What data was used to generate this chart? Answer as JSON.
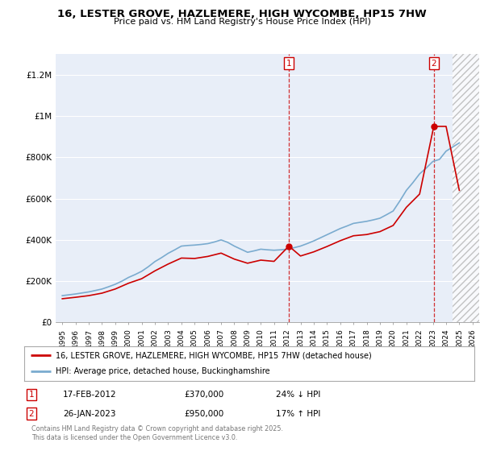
{
  "title": "16, LESTER GROVE, HAZLEMERE, HIGH WYCOMBE, HP15 7HW",
  "subtitle": "Price paid vs. HM Land Registry's House Price Index (HPI)",
  "legend_label_red": "16, LESTER GROVE, HAZLEMERE, HIGH WYCOMBE, HP15 7HW (detached house)",
  "legend_label_blue": "HPI: Average price, detached house, Buckinghamshire",
  "transaction1_label": "1",
  "transaction1_date": "17-FEB-2012",
  "transaction1_price": "£370,000",
  "transaction1_hpi": "24% ↓ HPI",
  "transaction2_label": "2",
  "transaction2_date": "26-JAN-2023",
  "transaction2_price": "£950,000",
  "transaction2_hpi": "17% ↑ HPI",
  "footer": "Contains HM Land Registry data © Crown copyright and database right 2025.\nThis data is licensed under the Open Government Licence v3.0.",
  "red_color": "#cc0000",
  "blue_color": "#7aabcf",
  "marker1_x": 2012.12,
  "marker1_y": 370000,
  "marker2_x": 2023.07,
  "marker2_y": 950000,
  "ylim": [
    0,
    1300000
  ],
  "xlim": [
    1994.5,
    2026.5
  ],
  "yticks": [
    0,
    200000,
    400000,
    600000,
    800000,
    1000000,
    1200000
  ],
  "ytick_labels": [
    "£0",
    "£200K",
    "£400K",
    "£600K",
    "£800K",
    "£1M",
    "£1.2M"
  ],
  "hpi_years": [
    1995,
    1995.5,
    1996,
    1996.5,
    1997,
    1997.5,
    1998,
    1998.5,
    1999,
    1999.5,
    2000,
    2000.5,
    2001,
    2001.5,
    2002,
    2002.5,
    2003,
    2003.5,
    2004,
    2004.5,
    2005,
    2005.5,
    2006,
    2006.5,
    2007,
    2007.5,
    2008,
    2008.5,
    2009,
    2009.5,
    2010,
    2010.5,
    2011,
    2011.5,
    2012,
    2012.5,
    2013,
    2013.5,
    2014,
    2014.5,
    2015,
    2015.5,
    2016,
    2016.5,
    2017,
    2017.5,
    2018,
    2018.5,
    2019,
    2019.5,
    2020,
    2020.5,
    2021,
    2021.5,
    2022,
    2022.5,
    2023,
    2023.5,
    2024,
    2024.5,
    2025
  ],
  "hpi_values": [
    130000,
    134000,
    138000,
    143000,
    148000,
    155000,
    162000,
    173000,
    185000,
    200000,
    218000,
    232000,
    248000,
    270000,
    295000,
    314000,
    335000,
    352000,
    370000,
    373000,
    375000,
    378000,
    382000,
    390000,
    400000,
    388000,
    370000,
    355000,
    340000,
    347000,
    355000,
    352000,
    350000,
    352000,
    355000,
    362000,
    370000,
    382000,
    395000,
    410000,
    425000,
    440000,
    455000,
    467000,
    480000,
    485000,
    490000,
    497000,
    505000,
    522000,
    540000,
    588000,
    640000,
    678000,
    720000,
    748000,
    780000,
    790000,
    830000,
    850000,
    870000
  ],
  "red_years": [
    1995,
    1996,
    1997,
    1998,
    1999,
    2000,
    2001,
    2002,
    2003,
    2004,
    2005,
    2006,
    2007,
    2008,
    2009,
    2010,
    2011,
    2012.12,
    2013,
    2014,
    2015,
    2016,
    2017,
    2018,
    2019,
    2020,
    2021,
    2022,
    2023.07,
    2024,
    2025
  ],
  "red_values": [
    115000,
    122000,
    130000,
    142000,
    162000,
    190000,
    212000,
    250000,
    283000,
    312000,
    310000,
    320000,
    336000,
    307000,
    287000,
    302000,
    296000,
    370000,
    322000,
    342000,
    368000,
    396000,
    420000,
    426000,
    440000,
    470000,
    558000,
    622000,
    950000,
    950000,
    640000
  ],
  "background_color": "#e8eef8",
  "hatch_start": 2024.5
}
